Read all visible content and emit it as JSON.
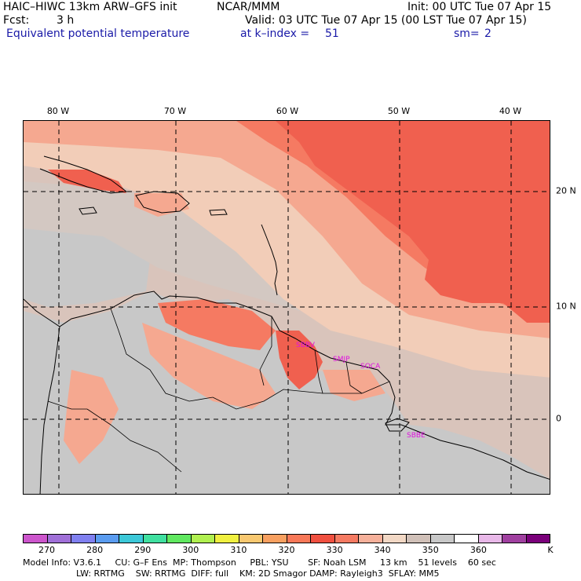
{
  "header": {
    "title_left": "HAIC–HIWC 13km ARW–GFS init",
    "title_org": "NCAR/MMM",
    "init": "Init: 00 UTC Tue 07 Apr 15",
    "fcst_label": "Fcst:",
    "fcst_value": "3 h",
    "valid": "Valid: 03 UTC Tue 07 Apr 15 (00 LST Tue 07 Apr 15)",
    "field": "Equivalent potential temperature",
    "level": "at k–index =",
    "level_value": "51",
    "smoothing": "sm=",
    "smoothing_value": "2"
  },
  "map": {
    "lon_labels": [
      "80 W",
      "70 W",
      "60 W",
      "50 W",
      "40 W"
    ],
    "lat_labels": [
      "20 N",
      "10 N",
      "0"
    ],
    "stations": [
      "SBBV",
      "SMJP",
      "SOCA",
      "SBBE"
    ],
    "colors": {
      "background": "#d9c4bb",
      "land_grey": "#c8c8c8",
      "level_330": "#f0604f",
      "level_335": "#f57a62",
      "level_340": "#f5a890",
      "level_345": "#f2cdb8",
      "level_350": "#d6c9c2",
      "station_label": "#e010e0"
    }
  },
  "colorbar": {
    "colors": [
      "#cc55cc",
      "#a070d8",
      "#8080f0",
      "#5a9cf0",
      "#3cc8d8",
      "#40e0a0",
      "#60e860",
      "#b0f050",
      "#f0f040",
      "#f8c870",
      "#f8a060",
      "#f87858",
      "#f05040",
      "#f57a62",
      "#f5b09a",
      "#f2d8c5",
      "#d0c0b8",
      "#c8c8c8",
      "#ffffff",
      "#e8b8e8",
      "#a040a0",
      "#7a007a"
    ],
    "tick_labels": [
      "270",
      "280",
      "290",
      "300",
      "310",
      "320",
      "330",
      "340",
      "350",
      "360",
      "K"
    ]
  },
  "footer": {
    "line1": "Model Info: V3.6.1     CU: G–F Ens  MP: Thompson     PBL: YSU       SF: Noah LSM     13 km    51 levels    60 sec",
    "line2": "LW: RRTMG    SW: RRTMG  DIFF: full    KM: 2D Smagor DAMP: Rayleigh3  SFLAY: MM5"
  }
}
